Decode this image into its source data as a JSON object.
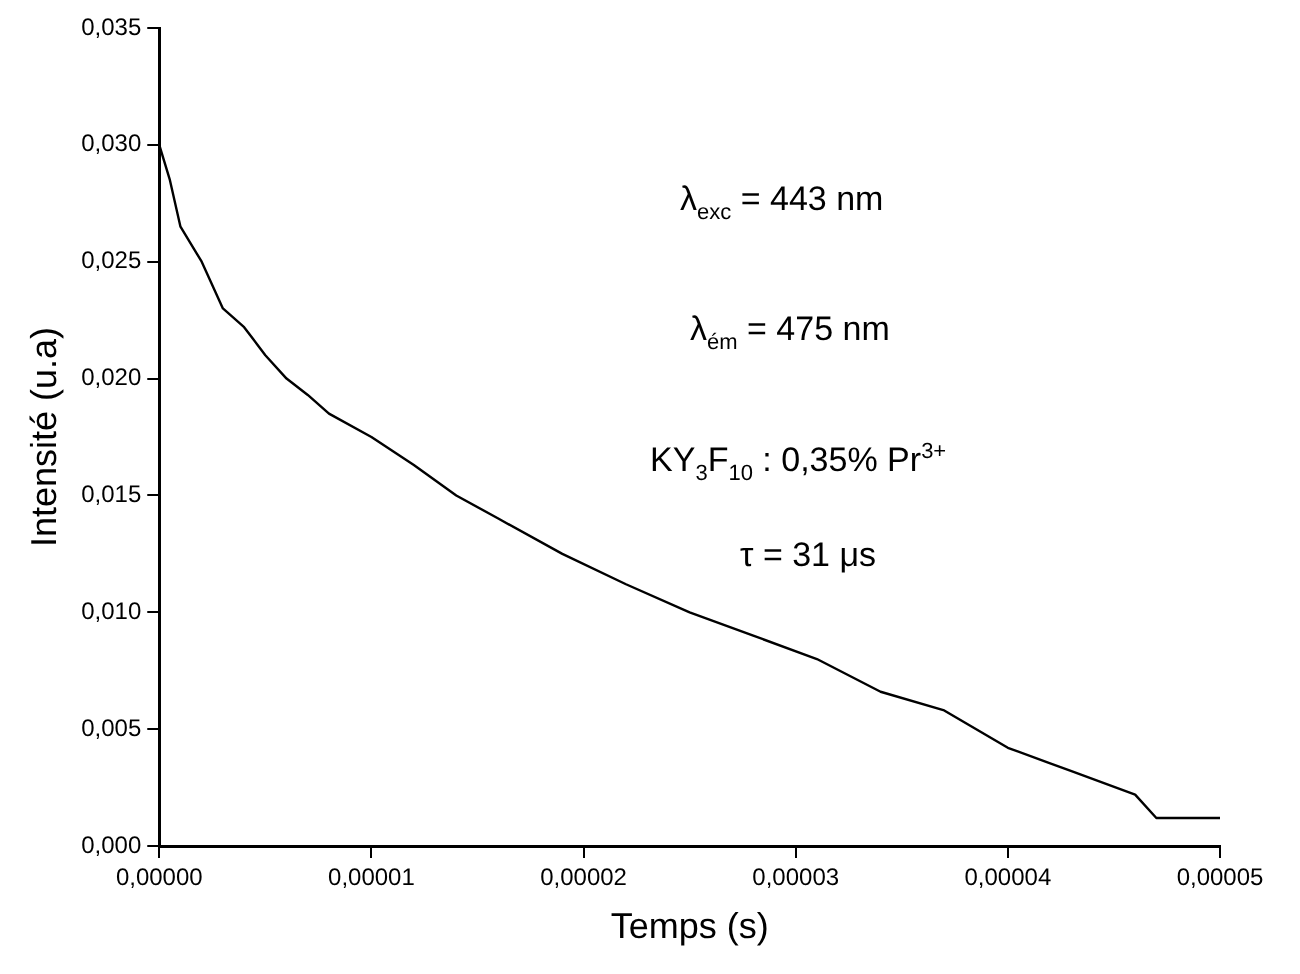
{
  "chart_data": {
    "type": "line",
    "xlabel": "Temps (s)",
    "ylabel": "Intensité (u.a)",
    "x": [
      0,
      5e-07,
      1e-06,
      2e-06,
      3e-06,
      4e-06,
      5e-06,
      6e-06,
      7e-06,
      8e-06,
      1e-05,
      1.2e-05,
      1.4e-05,
      1.6e-05,
      1.9e-05,
      2.2e-05,
      2.5e-05,
      2.8e-05,
      3.1e-05,
      3.4e-05,
      3.7e-05,
      4e-05,
      4.3e-05,
      4.6e-05,
      4.7e-05,
      5e-05
    ],
    "series": [
      {
        "color": "#000000",
        "values": [
          0.03,
          0.0285,
          0.0265,
          0.025,
          0.023,
          0.0222,
          0.021,
          0.02,
          0.0193,
          0.0185,
          0.0175,
          0.0163,
          0.015,
          0.014,
          0.0125,
          0.0112,
          0.01,
          0.009,
          0.008,
          0.0066,
          0.0058,
          0.0042,
          0.0032,
          0.0022,
          0.0012,
          0.0012
        ]
      }
    ],
    "xlim": [
      0,
      5e-05
    ],
    "ylim": [
      0,
      0.035
    ],
    "xticks": [
      {
        "value": 0,
        "label": "0,00000"
      },
      {
        "value": 1e-05,
        "label": "0,00001"
      },
      {
        "value": 2e-05,
        "label": "0,00002"
      },
      {
        "value": 3e-05,
        "label": "0,00003"
      },
      {
        "value": 4e-05,
        "label": "0,00004"
      },
      {
        "value": 5e-05,
        "label": "0,00005"
      }
    ],
    "yticks": [
      {
        "value": 0,
        "label": "0,000"
      },
      {
        "value": 0.005,
        "label": "0,005"
      },
      {
        "value": 0.01,
        "label": "0,010"
      },
      {
        "value": 0.015,
        "label": "0,015"
      },
      {
        "value": 0.02,
        "label": "0,020"
      },
      {
        "value": 0.025,
        "label": "0,025"
      },
      {
        "value": 0.03,
        "label": "0,030"
      },
      {
        "value": 0.035,
        "label": "0,035"
      }
    ],
    "annotations": [
      "λ$_{exc}$ = 443 nm",
      "λ$_{ém}$ = 475 nm",
      "KY$_{3}$F$_{10}$ : 0,35% Pr$^{3+}$",
      "τ = 31 μs"
    ],
    "grid": false,
    "legend": false,
    "marker": "none",
    "line_style": "solid"
  }
}
